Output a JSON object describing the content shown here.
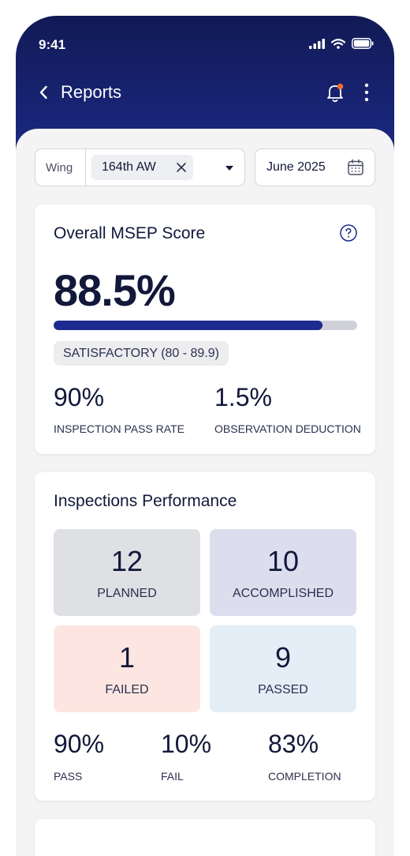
{
  "status_bar": {
    "time": "9:41"
  },
  "nav": {
    "title": "Reports"
  },
  "filters": {
    "wing_label": "Wing",
    "wing_value": "164th AW",
    "date_value": "June 2025"
  },
  "msep": {
    "title": "Overall MSEP Score",
    "score": "88.5%",
    "score_fraction": 0.885,
    "rating": "SATISFACTORY (80 - 89.9)",
    "pass_rate_value": "90%",
    "pass_rate_label": "INSPECTION PASS RATE",
    "deduction_value": "1.5%",
    "deduction_label": "OBSERVATION DEDUCTION"
  },
  "performance": {
    "title": "Inspections Performance",
    "planned_value": "12",
    "planned_label": "PLANNED",
    "accomplished_value": "10",
    "accomplished_label": "ACCOMPLISHED",
    "failed_value": "1",
    "failed_label": "FAILED",
    "passed_value": "9",
    "passed_label": "PASSED",
    "pass_value": "90%",
    "pass_label": "PASS",
    "fail_value": "10%",
    "fail_label": "FAIL",
    "completion_value": "83%",
    "completion_label": "COMPLETION"
  },
  "colors": {
    "header": "#1b2a86",
    "progress": "#1d2a8e",
    "notification_dot": "#f26a2b"
  }
}
